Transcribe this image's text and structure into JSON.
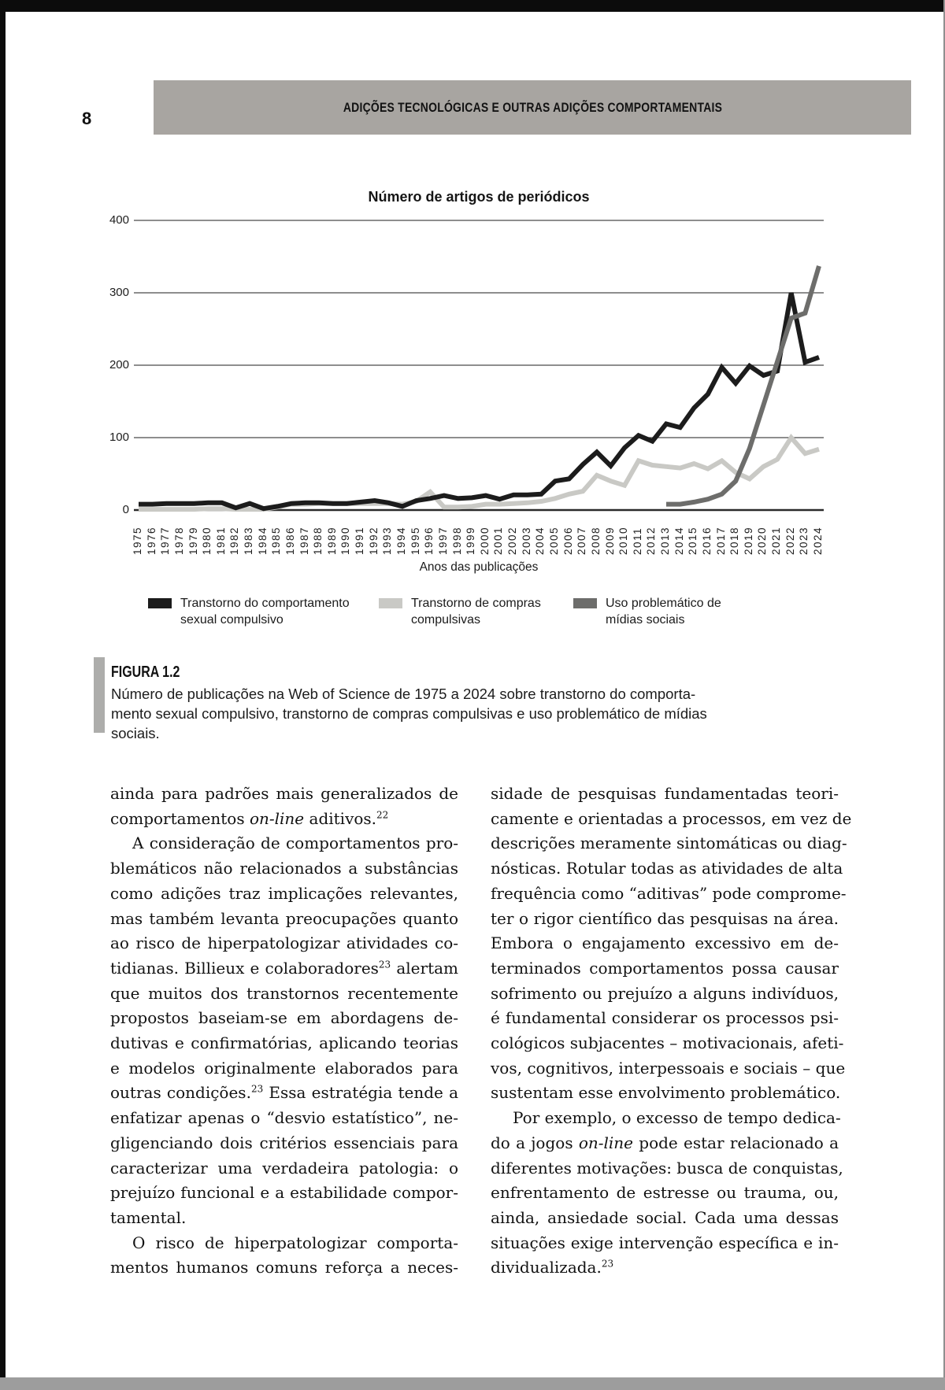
{
  "page": {
    "number": "8",
    "running_header": "ADIÇÕES TECNOLÓGICAS E OUTRAS ADIÇÕES COMPORTAMENTAIS"
  },
  "figure": {
    "label": "FIGURA 1.2",
    "caption_lines": [
      "Número de publicações na Web of Science de 1975 a 2024 sobre transtorno do comporta-",
      "mento sexual compulsivo, transtorno de compras compulsivas e uso problemático de mídias",
      "sociais."
    ]
  },
  "chart_data": {
    "type": "line",
    "title": "Número de artigos de periódicos",
    "xlabel": "Anos das publicações",
    "ylabel": "",
    "ylim": [
      0,
      400
    ],
    "yticks": [
      0,
      100,
      200,
      300,
      400
    ],
    "grid": true,
    "legend_position": "bottom",
    "x": [
      1975,
      1976,
      1977,
      1978,
      1979,
      1980,
      1981,
      1982,
      1983,
      1984,
      1985,
      1986,
      1987,
      1988,
      1989,
      1990,
      1991,
      1992,
      1993,
      1994,
      1995,
      1996,
      1997,
      1998,
      1999,
      2000,
      2001,
      2002,
      2003,
      2004,
      2005,
      2006,
      2007,
      2008,
      2009,
      2010,
      2011,
      2012,
      2013,
      2014,
      2015,
      2016,
      2017,
      2018,
      2019,
      2020,
      2021,
      2022,
      2023,
      2024
    ],
    "series": [
      {
        "name": "Transtorno do comportamento sexual compulsivo",
        "color": "#1c1c1c",
        "values": [
          8,
          8,
          9,
          9,
          9,
          10,
          10,
          3,
          9,
          2,
          5,
          9,
          10,
          10,
          9,
          9,
          11,
          13,
          10,
          5,
          13,
          16,
          20,
          16,
          17,
          20,
          15,
          21,
          21,
          22,
          40,
          43,
          63,
          80,
          61,
          86,
          103,
          95,
          119,
          114,
          141,
          160,
          197,
          175,
          199,
          186,
          192,
          300,
          204,
          211
        ]
      },
      {
        "name": "Transtorno de compras compulsivas",
        "color": "#c9c9c5",
        "values": [
          1,
          1,
          1,
          1,
          1,
          2,
          2,
          1,
          1,
          1,
          4,
          8,
          8,
          9,
          9,
          9,
          9,
          9,
          9,
          8,
          12,
          25,
          4,
          4,
          5,
          8,
          8,
          9,
          10,
          12,
          16,
          22,
          26,
          48,
          40,
          34,
          68,
          62,
          60,
          58,
          64,
          57,
          68,
          52,
          43,
          60,
          70,
          100,
          78,
          84
        ]
      },
      {
        "name": "Uso problemático de mídias sociais",
        "color": "#6d6d6b",
        "values": [
          null,
          null,
          null,
          null,
          null,
          null,
          null,
          null,
          null,
          null,
          null,
          null,
          null,
          null,
          null,
          null,
          null,
          null,
          null,
          null,
          null,
          null,
          null,
          null,
          null,
          null,
          null,
          null,
          null,
          null,
          null,
          null,
          null,
          null,
          null,
          null,
          null,
          null,
          8,
          8,
          11,
          15,
          22,
          40,
          85,
          145,
          205,
          265,
          272,
          337
        ]
      }
    ]
  },
  "body": {
    "left_column": [
      {
        "seg": [
          {
            "t": "ainda para padrões mais generalizados de"
          }
        ]
      },
      {
        "end": true,
        "seg": [
          {
            "t": "comportamentos "
          },
          {
            "t": "on-line",
            "i": true
          },
          {
            "t": " aditivos."
          },
          {
            "t": "22",
            "sup": true
          }
        ]
      },
      {
        "ind": true,
        "seg": [
          {
            "t": "A consideração de comportamentos pro-"
          }
        ]
      },
      {
        "seg": [
          {
            "t": "blemáticos não relacionados a substâncias"
          }
        ]
      },
      {
        "seg": [
          {
            "t": "como adições traz implicações relevantes,"
          }
        ]
      },
      {
        "seg": [
          {
            "t": "mas também levanta preocupações quanto"
          }
        ]
      },
      {
        "seg": [
          {
            "t": "ao risco de hiperpatologizar atividades co-"
          }
        ]
      },
      {
        "seg": [
          {
            "t": "tidianas. Billieux e colaboradores"
          },
          {
            "t": "23",
            "sup": true
          },
          {
            "t": " alertam"
          }
        ]
      },
      {
        "seg": [
          {
            "t": "que muitos dos transtornos recentemente"
          }
        ]
      },
      {
        "seg": [
          {
            "t": "propostos baseiam-se em abordagens de-"
          }
        ]
      },
      {
        "seg": [
          {
            "t": "dutivas e confirmatórias, aplicando teorias"
          }
        ]
      },
      {
        "seg": [
          {
            "t": "e modelos originalmente elaborados para"
          }
        ]
      },
      {
        "seg": [
          {
            "t": "outras condições."
          },
          {
            "t": "23",
            "sup": true
          },
          {
            "t": " Essa estratégia tende a"
          }
        ]
      },
      {
        "seg": [
          {
            "t": "enfatizar apenas o “desvio estatístico”, ne-"
          }
        ]
      },
      {
        "seg": [
          {
            "t": "gligenciando dois critérios essenciais para"
          }
        ]
      },
      {
        "seg": [
          {
            "t": "caracterizar uma verdadeira patologia: o"
          }
        ]
      },
      {
        "seg": [
          {
            "t": "prejuízo funcional e a estabilidade compor-"
          }
        ]
      },
      {
        "end": true,
        "seg": [
          {
            "t": "tamental."
          }
        ]
      },
      {
        "ind": true,
        "seg": [
          {
            "t": "O risco de hiperpatologizar comporta-"
          }
        ]
      },
      {
        "seg": [
          {
            "t": "mentos humanos comuns reforça a neces-"
          }
        ]
      }
    ],
    "right_column": [
      {
        "seg": [
          {
            "t": "sidade de pesquisas fundamentadas teori-"
          }
        ]
      },
      {
        "seg": [
          {
            "t": "camente e orientadas a processos, em vez de"
          }
        ]
      },
      {
        "seg": [
          {
            "t": "descrições meramente sintomáticas ou diag-"
          }
        ]
      },
      {
        "seg": [
          {
            "t": "nósticas. Rotular todas as atividades de alta"
          }
        ]
      },
      {
        "seg": [
          {
            "t": "frequência como “aditivas” pode comprome-"
          }
        ]
      },
      {
        "seg": [
          {
            "t": "ter o rigor científico das pesquisas na área."
          }
        ]
      },
      {
        "seg": [
          {
            "t": "Embora o engajamento excessivo em de-"
          }
        ]
      },
      {
        "seg": [
          {
            "t": "terminados comportamentos possa causar"
          }
        ]
      },
      {
        "seg": [
          {
            "t": "sofrimento ou prejuízo a alguns indivíduos,"
          }
        ]
      },
      {
        "seg": [
          {
            "t": "é fundamental considerar os processos psi-"
          }
        ]
      },
      {
        "seg": [
          {
            "t": "cológicos subjacentes – motivacionais, afeti-"
          }
        ]
      },
      {
        "seg": [
          {
            "t": "vos, cognitivos, interpessoais e sociais – que"
          }
        ]
      },
      {
        "end": true,
        "seg": [
          {
            "t": "sustentam esse envolvimento problemático."
          }
        ]
      },
      {
        "ind": true,
        "seg": [
          {
            "t": "Por exemplo, o excesso de tempo dedica-"
          }
        ]
      },
      {
        "seg": [
          {
            "t": "do a jogos "
          },
          {
            "t": "on-line",
            "i": true
          },
          {
            "t": " pode estar relacionado a"
          }
        ]
      },
      {
        "seg": [
          {
            "t": "diferentes motivações: busca de conquistas,"
          }
        ]
      },
      {
        "seg": [
          {
            "t": "enfrentamento de estresse ou trauma, ou,"
          }
        ]
      },
      {
        "seg": [
          {
            "t": "ainda, ansiedade social. Cada uma dessas"
          }
        ]
      },
      {
        "seg": [
          {
            "t": "situações exige intervenção específica e in-"
          }
        ]
      },
      {
        "end": true,
        "seg": [
          {
            "t": "dividualizada."
          },
          {
            "t": "23",
            "sup": true
          }
        ]
      }
    ]
  }
}
